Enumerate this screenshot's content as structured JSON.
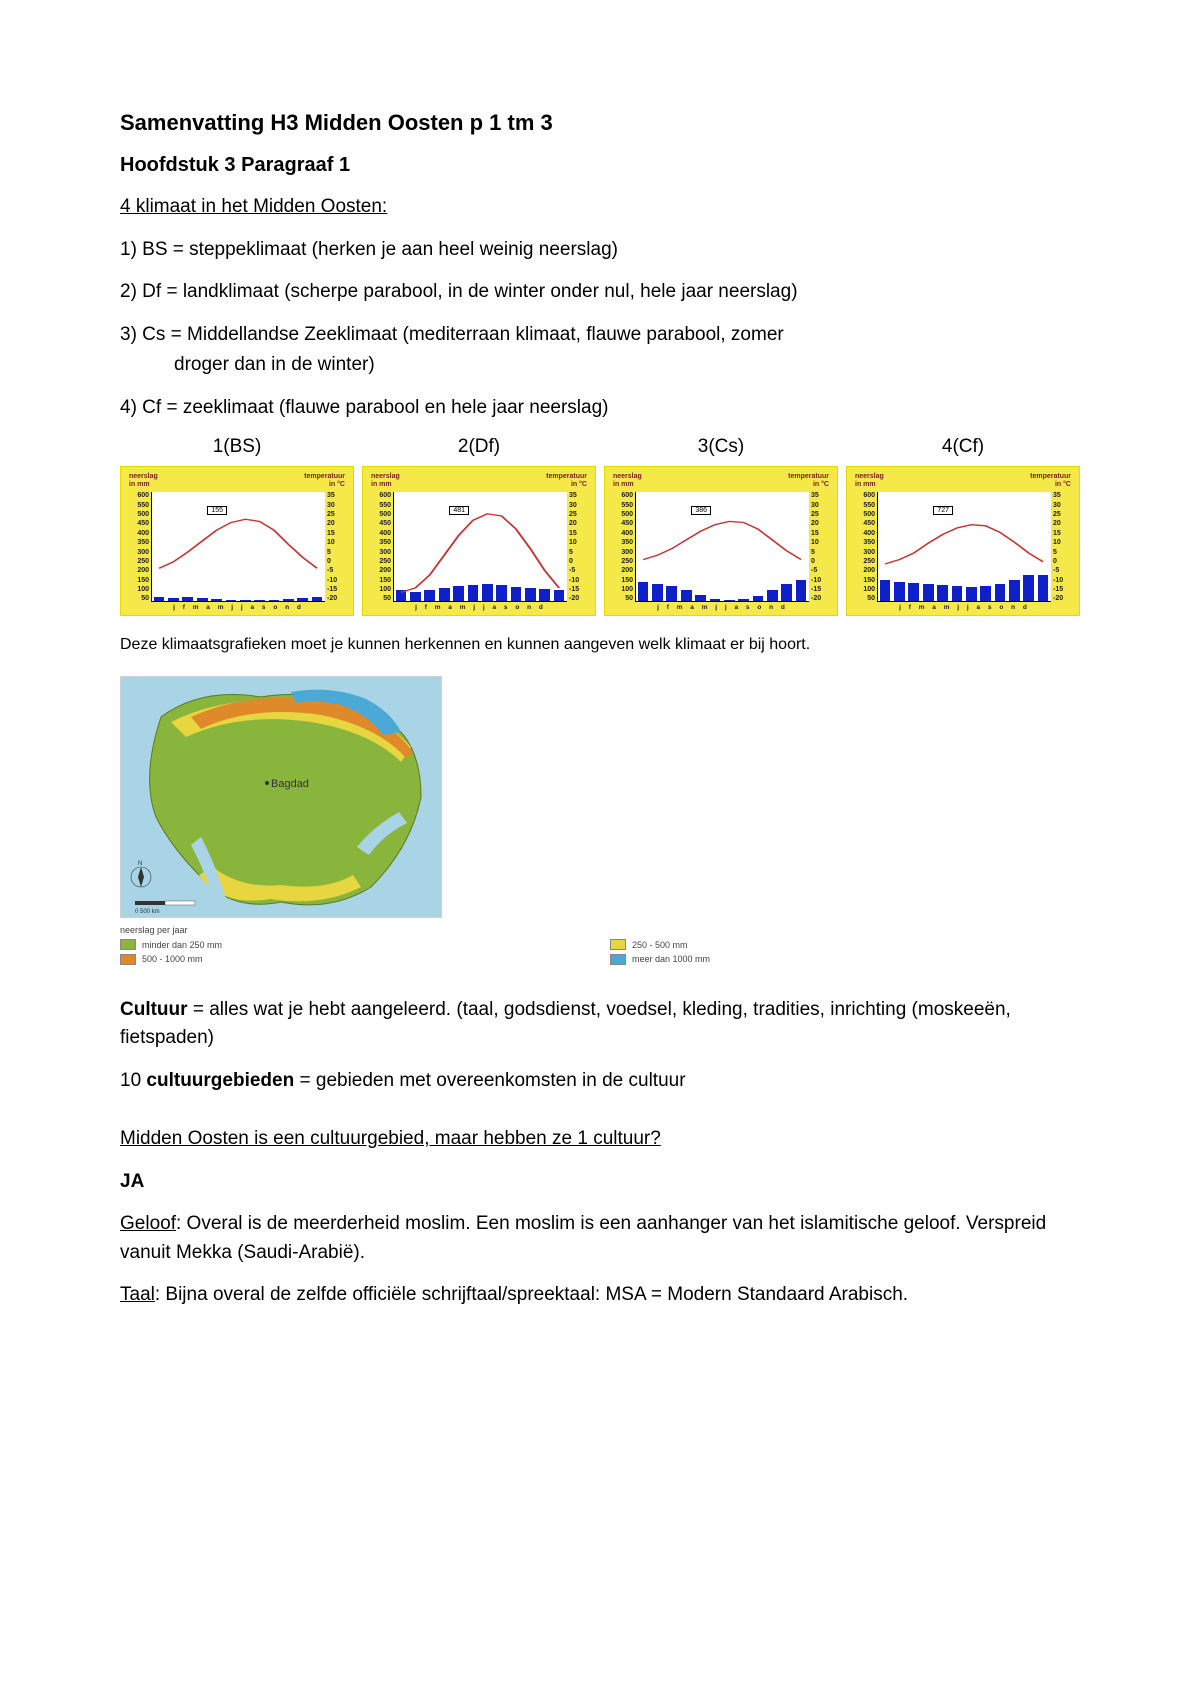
{
  "document": {
    "main_title": "Samenvatting H3 Midden Oosten p 1 tm 3",
    "sub_title": "Hoofdstuk 3 Paragraaf 1",
    "section_heading": "4 klimaat in het Midden Oosten:",
    "items": [
      "1) BS = steppeklimaat (herken je aan heel weinig neerslag)",
      "2)  Df = landklimaat (scherpe parabool, in de winter onder nul, hele jaar neerslag)",
      "3) Cs = Middellandse Zeeklimaat (mediterraan klimaat, flauwe parabool, zomer",
      "droger dan in de winter)",
      "4)  Cf = zeeklimaat (flauwe parabool en hele jaar neerslag)"
    ],
    "chart_caption": "Deze klimaatsgrafieken moet je kunnen herkennen en kunnen aangeven welk klimaat er bij hoort.",
    "culture_label": "Cultuur",
    "culture_def": " =  alles wat je hebt aangeleerd. (taal, godsdienst, voedsel, kleding, tradities, inrichting (moskeeën, fietspaden)",
    "ten_prefix": "10 ",
    "regions_label": "cultuurgebieden",
    "regions_def": " =  gebieden met overeenkomsten in de cultuur",
    "question": "Midden Oosten is een cultuurgebied, maar hebben ze 1 cultuur?",
    "ja": "JA",
    "geloof_label": "Geloof",
    "geloof_text": ": Overal is de meerderheid moslim. Een moslim is een aanhanger van het islamitische geloof. Verspreid vanuit Mekka (Saudi-Arabië).",
    "taal_label": "Taal",
    "taal_text": ": Bijna overal de zelfde officiële schrijftaal/spreektaal: MSA = Modern Standaard Arabisch."
  },
  "charts": {
    "background_color": "#f5e94a",
    "bar_color": "#1020c8",
    "temp_line_color": "#c83030",
    "plot_bg": "#ffffff",
    "header_left": "neerslag\nin mm",
    "header_right": "temperatuur\nin °C",
    "months": "j f m a m j j a s o n d",
    "y_left_ticks": [
      "600",
      "550",
      "500",
      "450",
      "400",
      "350",
      "300",
      "250",
      "200",
      "150",
      "100",
      "50"
    ],
    "y_right_ticks": [
      "35",
      "30",
      "25",
      "20",
      "15",
      "10",
      "5",
      "0",
      "-5",
      "-10",
      "-15",
      "-20"
    ],
    "list": [
      {
        "label": "1(BS)",
        "station": "155",
        "bars_pct": [
          4,
          3,
          4,
          3,
          2,
          1,
          1,
          1,
          1,
          2,
          3,
          4
        ],
        "temp_pct": [
          70,
          64,
          55,
          45,
          35,
          28,
          25,
          27,
          35,
          48,
          60,
          70
        ]
      },
      {
        "label": "2(Df)",
        "station": "481",
        "bars_pct": [
          10,
          9,
          10,
          12,
          14,
          15,
          16,
          15,
          13,
          12,
          11,
          10
        ],
        "temp_pct": [
          92,
          88,
          76,
          58,
          40,
          26,
          20,
          22,
          34,
          52,
          72,
          88
        ]
      },
      {
        "label": "3(Cs)",
        "station": "386",
        "bars_pct": [
          18,
          16,
          14,
          10,
          6,
          2,
          1,
          2,
          5,
          10,
          16,
          20
        ],
        "temp_pct": [
          62,
          58,
          52,
          44,
          36,
          30,
          27,
          28,
          34,
          44,
          54,
          62
        ]
      },
      {
        "label": "4(Cf)",
        "station": "727",
        "bars_pct": [
          20,
          18,
          17,
          16,
          15,
          14,
          13,
          14,
          16,
          20,
          24,
          24
        ],
        "temp_pct": [
          66,
          62,
          56,
          47,
          39,
          33,
          30,
          31,
          37,
          46,
          56,
          64
        ]
      }
    ]
  },
  "map": {
    "sea_color": "#a8d4e6",
    "land_green": "#8ab53c",
    "arid_yellow": "#e8d640",
    "high_orange": "#e0892b",
    "wet_blue": "#4aa9d6",
    "border_color": "#5a7a20",
    "label_baghdad": "Bagdad",
    "legend_title": "neerslag per jaar",
    "legend": [
      {
        "color": "#8ab53c",
        "label": "minder dan 250 mm"
      },
      {
        "color": "#e8d640",
        "label": "250 - 500 mm"
      },
      {
        "color": "#e0892b",
        "label": "500 - 1000 mm"
      },
      {
        "color": "#4aa9d6",
        "label": "meer dan 1000 mm"
      }
    ]
  }
}
